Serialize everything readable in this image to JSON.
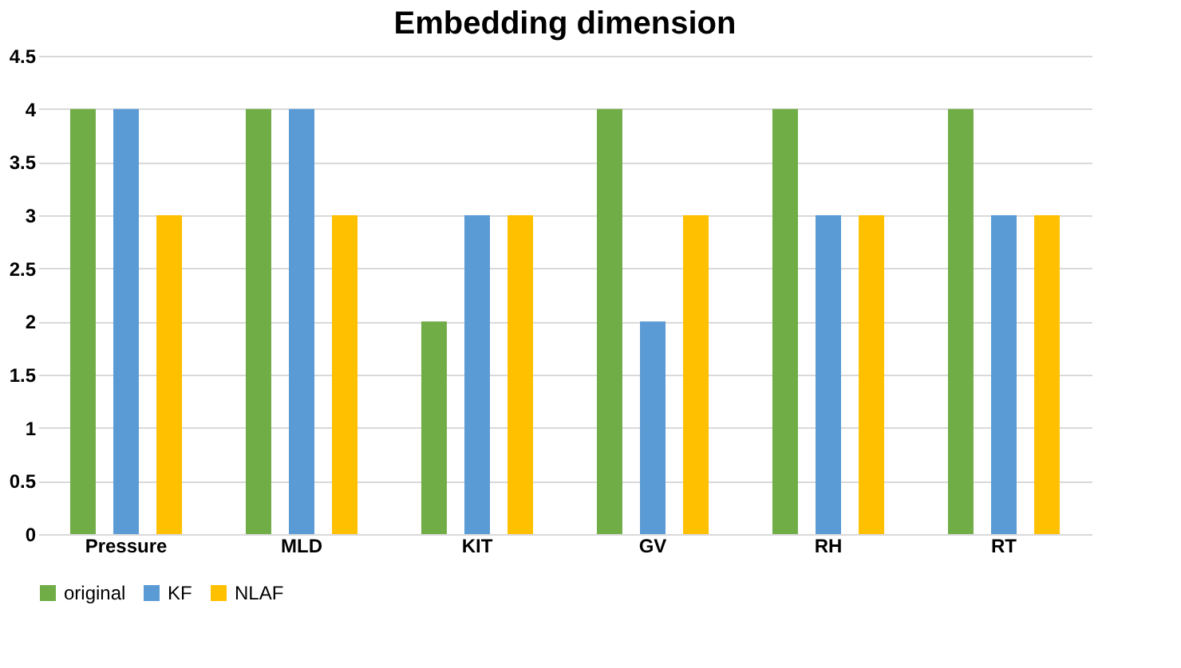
{
  "chart_data": {
    "type": "bar",
    "title": "Embedding dimension",
    "categories": [
      "Pressure",
      "MLD",
      "KIT",
      "GV",
      "RH",
      "RT"
    ],
    "series": [
      {
        "name": "original",
        "color": "#70ad47",
        "values": [
          4,
          4,
          2,
          4,
          4,
          4
        ]
      },
      {
        "name": "KF",
        "color": "#5b9bd5",
        "values": [
          4,
          4,
          3,
          2,
          3,
          3
        ]
      },
      {
        "name": "NLAF",
        "color": "#ffc000",
        "values": [
          3,
          3,
          3,
          3,
          3,
          3
        ]
      }
    ],
    "ylim": [
      0,
      4.5
    ],
    "yticks": [
      0,
      0.5,
      1,
      1.5,
      2,
      2.5,
      3,
      3.5,
      4,
      4.5
    ],
    "grid": "y",
    "legend": "bottom"
  }
}
